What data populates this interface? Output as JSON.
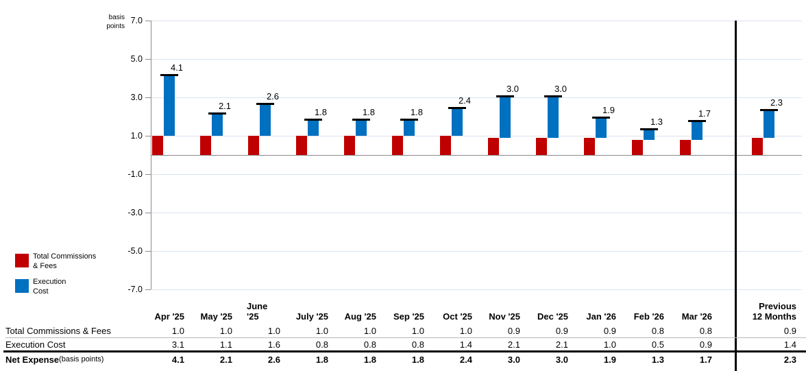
{
  "chart": {
    "unit_label": [
      "basis",
      "points"
    ],
    "y_ticks": [
      "7.0",
      "5.0",
      "3.0",
      "1.0",
      "-1.0",
      "-3.0",
      "-5.0",
      "-7.0"
    ],
    "y_tick_values": [
      7,
      5,
      3,
      1,
      -1,
      -3,
      -5,
      -7
    ],
    "colors": {
      "commissions": "#c00000",
      "execution": "#0070c0",
      "grid": "#dae3ef",
      "axis": "#8a8a8a",
      "net_marker": "#000000"
    },
    "legend": [
      {
        "swatch_color": "#c00000",
        "label_lines": [
          "Total Commissions",
          "& Fees"
        ]
      },
      {
        "swatch_color": "#0070c0",
        "label_lines": [
          "Execution",
          "Cost"
        ]
      }
    ]
  },
  "chart_data": {
    "type": "bar",
    "stacked": true,
    "title": "",
    "ylabel": "basis points",
    "ylim": [
      -7,
      7
    ],
    "yticks": [
      7,
      5,
      3,
      1,
      -1,
      -3,
      -5,
      -7
    ],
    "grid": true,
    "legend_position": "bottom-left",
    "categories": [
      "Apr '25",
      "May '25",
      "June '25",
      "July '25",
      "Aug '25",
      "Sep '25",
      "Oct '25",
      "Nov '25",
      "Dec '25",
      "Jan '26",
      "Feb '26",
      "Mar '26",
      "Previous 12 Months"
    ],
    "series": [
      {
        "name": "Total Commissions & Fees",
        "color": "#c00000",
        "values": [
          1.0,
          1.0,
          1.0,
          1.0,
          1.0,
          1.0,
          1.0,
          0.9,
          0.9,
          0.9,
          0.8,
          0.8,
          0.9
        ]
      },
      {
        "name": "Execution Cost",
        "color": "#0070c0",
        "values": [
          3.1,
          1.1,
          1.6,
          0.8,
          0.8,
          0.8,
          1.4,
          2.1,
          2.1,
          1.0,
          0.5,
          0.9,
          1.4
        ]
      }
    ],
    "totals": {
      "name": "Net Expense",
      "values": [
        4.1,
        2.1,
        2.6,
        1.8,
        1.8,
        1.8,
        2.4,
        3.0,
        3.0,
        1.9,
        1.3,
        1.7,
        2.3
      ]
    }
  },
  "table": {
    "columns": [
      "Apr '25",
      "May '25",
      "June '25",
      "July '25",
      "Aug '25",
      "Sep '25",
      "Oct '25",
      "Nov '25",
      "Dec '25",
      "Jan '26",
      "Feb '26",
      "Mar '26"
    ],
    "last_column_lines": [
      "Previous",
      "12 Months"
    ],
    "rows": [
      {
        "label": "Total Commissions & Fees",
        "suffix": "",
        "bold": false,
        "values": [
          "1.0",
          "1.0",
          "1.0",
          "1.0",
          "1.0",
          "1.0",
          "1.0",
          "0.9",
          "0.9",
          "0.9",
          "0.8",
          "0.8",
          "0.9"
        ]
      },
      {
        "label": "Execution Cost",
        "suffix": "",
        "bold": false,
        "values": [
          "3.1",
          "1.1",
          "1.6",
          "0.8",
          "0.8",
          "0.8",
          "1.4",
          "2.1",
          "2.1",
          "1.0",
          "0.5",
          "0.9",
          "1.4"
        ]
      },
      {
        "label": "Net Expense",
        "suffix": " (basis points)",
        "bold": true,
        "values": [
          "4.1",
          "2.1",
          "2.6",
          "1.8",
          "1.8",
          "1.8",
          "2.4",
          "3.0",
          "3.0",
          "1.9",
          "1.3",
          "1.7",
          "2.3"
        ]
      }
    ]
  }
}
